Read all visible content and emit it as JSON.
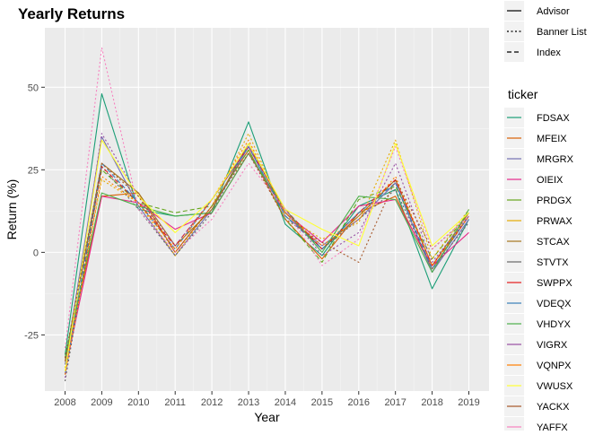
{
  "chart_data": {
    "type": "line",
    "title": "Yearly Returns",
    "xlabel": "Year",
    "ylabel": "Return (%)",
    "x": [
      2008,
      2009,
      2010,
      2011,
      2012,
      2013,
      2014,
      2015,
      2016,
      2017,
      2018,
      2019
    ],
    "ylim": [
      -42,
      68
    ],
    "y_ticks": [
      -25,
      0,
      25,
      50
    ],
    "grid": true,
    "legend_position": "right",
    "linetype_legend": {
      "title": "",
      "entries": [
        {
          "label": "Advisor",
          "dash": "solid"
        },
        {
          "label": "Banner List",
          "dash": "dotted"
        },
        {
          "label": "Index",
          "dash": "dashed"
        }
      ]
    },
    "color_legend": {
      "title": "ticker",
      "entries": [
        {
          "label": "FDSAX",
          "color": "#1b9e77"
        },
        {
          "label": "MFEIX",
          "color": "#d95f02"
        },
        {
          "label": "MRGRX",
          "color": "#7570b3"
        },
        {
          "label": "OIEIX",
          "color": "#e7298a"
        },
        {
          "label": "PRDGX",
          "color": "#66a61e"
        },
        {
          "label": "PRWAX",
          "color": "#e6ab02"
        },
        {
          "label": "STCAX",
          "color": "#a6761d"
        },
        {
          "label": "STVTX",
          "color": "#666666"
        },
        {
          "label": "SWPPX",
          "color": "#e41a1c"
        },
        {
          "label": "VDEQX",
          "color": "#377eb8"
        },
        {
          "label": "VHDYX",
          "color": "#4daf4a"
        },
        {
          "label": "VIGRX",
          "color": "#984ea3"
        },
        {
          "label": "VQNPX",
          "color": "#ff7f00"
        },
        {
          "label": "VWUSX",
          "color": "#ffff33"
        },
        {
          "label": "YACKX",
          "color": "#a65628"
        },
        {
          "label": "YAFFX",
          "color": "#f781bf"
        }
      ]
    },
    "series": [
      {
        "name": "FDSAX",
        "color": "#1b9e77",
        "dash": "solid",
        "values": [
          -31,
          48,
          13,
          11,
          12,
          39.5,
          8.5,
          -1,
          14,
          19,
          -11,
          10
        ]
      },
      {
        "name": "MFEIX",
        "color": "#d95f02",
        "dash": "solid",
        "values": [
          -33,
          17,
          18,
          0,
          14,
          31,
          10,
          -2,
          12,
          17,
          -5,
          11
        ]
      },
      {
        "name": "MRGRX",
        "color": "#7570b3",
        "dash": "solid",
        "values": [
          -34,
          35,
          14,
          -1,
          13,
          32,
          11,
          2,
          10,
          21,
          -6,
          10
        ]
      },
      {
        "name": "OIEIX",
        "color": "#e7298a",
        "dash": "solid",
        "values": [
          -36,
          17,
          15,
          7,
          12,
          30,
          12,
          3,
          14,
          16,
          -4,
          6
        ]
      },
      {
        "name": "PRDGX",
        "color": "#66a61e",
        "dash": "dashed",
        "values": [
          -32,
          25,
          15,
          12,
          14,
          31,
          10,
          -3,
          16,
          20,
          -2,
          12
        ]
      },
      {
        "name": "PRWAX",
        "color": "#e6ab02",
        "dash": "dotted",
        "values": [
          -35,
          22,
          15,
          -1,
          14,
          36,
          11,
          4,
          9,
          34,
          -2,
          13
        ]
      },
      {
        "name": "STCAX",
        "color": "#a6761d",
        "dash": "solid",
        "values": [
          -33,
          27,
          18,
          2,
          13,
          33,
          12,
          1,
          11,
          22,
          -4,
          12
        ]
      },
      {
        "name": "STVTX",
        "color": "#666666",
        "dash": "dotted",
        "values": [
          -39,
          26,
          13,
          -1,
          12,
          33,
          12,
          1,
          10,
          19,
          -5,
          9
        ]
      },
      {
        "name": "SWPPX",
        "color": "#e41a1c",
        "dash": "dashed",
        "values": [
          -37,
          26,
          15,
          2,
          16,
          32,
          13,
          1,
          12,
          22,
          -4,
          11
        ]
      },
      {
        "name": "VDEQX",
        "color": "#377eb8",
        "dash": "dashed",
        "values": [
          -37,
          27,
          15,
          1,
          16,
          32,
          11,
          1,
          12,
          21,
          -5,
          11
        ]
      },
      {
        "name": "VHDYX",
        "color": "#4daf4a",
        "dash": "solid",
        "values": [
          -32,
          18,
          14,
          11,
          12,
          30,
          13,
          0,
          17,
          16,
          -6,
          13
        ]
      },
      {
        "name": "VIGRX",
        "color": "#984ea3",
        "dash": "dotted",
        "values": [
          -38,
          36,
          17,
          2,
          16,
          32,
          13,
          -1,
          6,
          27,
          -3,
          11
        ]
      },
      {
        "name": "VQNPX",
        "color": "#ff7f00",
        "dash": "dotted",
        "values": [
          -37,
          23,
          15,
          1,
          16,
          34,
          12,
          2,
          10,
          23,
          -4,
          11
        ]
      },
      {
        "name": "VWUSX",
        "color": "#ffff33",
        "dash": "solid",
        "values": [
          -36,
          34,
          17,
          6,
          16,
          33,
          13,
          7,
          2,
          33,
          2,
          12
        ]
      },
      {
        "name": "YACKX",
        "color": "#a65628",
        "dash": "dotted",
        "values": [
          -32,
          27,
          17,
          0,
          14,
          30,
          10,
          3,
          -3,
          22,
          1,
          11
        ]
      },
      {
        "name": "YAFFX",
        "color": "#f781bf",
        "dash": "dotted",
        "values": [
          -29,
          62,
          13,
          0,
          10,
          27,
          13,
          -4,
          4,
          32,
          1,
          11
        ]
      }
    ]
  }
}
